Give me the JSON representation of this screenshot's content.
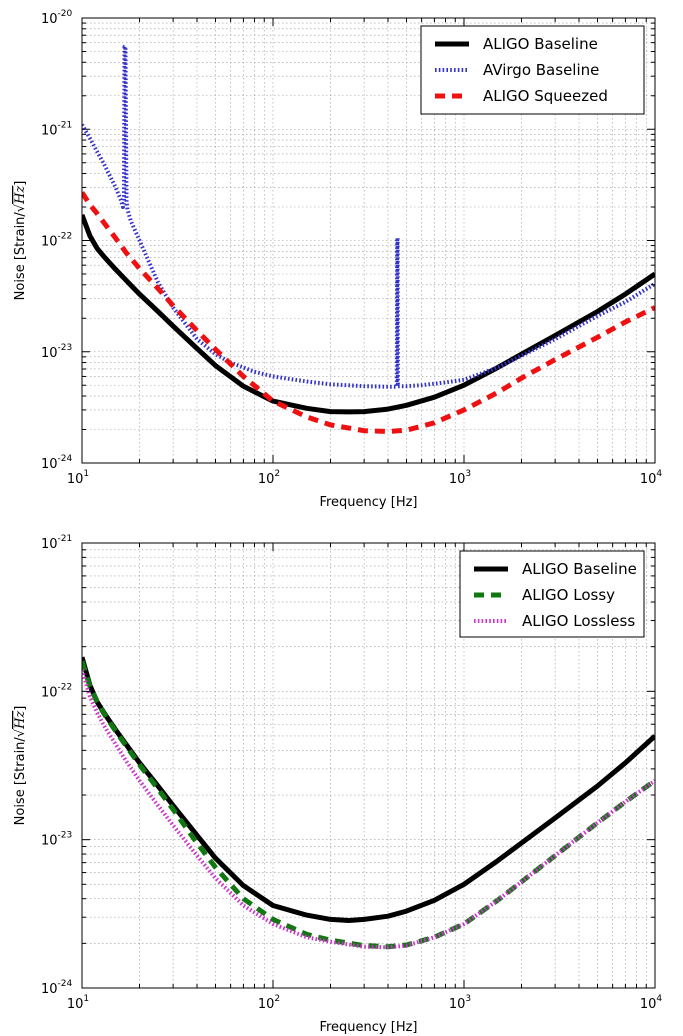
{
  "chart_data": [
    {
      "type": "line",
      "xscale": "log",
      "yscale": "log",
      "xlim": [
        10,
        10000
      ],
      "ylim": [
        1e-24,
        1e-20
      ],
      "grid": true,
      "legend_position": "top-right",
      "xlabel": "Frequency [Hz]",
      "ylabel_prefix": "Noise [Strain/",
      "ylabel_math": "Hz",
      "ylabel_suffix": "]",
      "xtick_labels": [
        "10",
        "10",
        "10",
        "10"
      ],
      "xtick_exponents": [
        "1",
        "2",
        "3",
        "4"
      ],
      "ytick_labels": [
        "10",
        "10",
        "10",
        "10",
        "10"
      ],
      "ytick_exponents": [
        "-24",
        "-23",
        "-22",
        "-21",
        "-20"
      ],
      "series": [
        {
          "name": "ALIGO Baseline",
          "color": "#000000",
          "style": "solid",
          "x": [
            10,
            11,
            12,
            13,
            15,
            17,
            20,
            25,
            30,
            40,
            50,
            70,
            100,
            150,
            200,
            250,
            300,
            400,
            500,
            700,
            1000,
            1500,
            2000,
            3000,
            5000,
            7000,
            10000
          ],
          "y": [
            1.7e-22,
            1.1e-22,
            8.5e-23,
            7.2e-23,
            5.5e-23,
            4.4e-23,
            3.3e-23,
            2.3e-23,
            1.7e-23,
            1.07e-23,
            7.5e-24,
            4.9e-24,
            3.6e-24,
            3.1e-24,
            2.9e-24,
            2.88e-24,
            2.9e-24,
            3.05e-24,
            3.3e-24,
            3.9e-24,
            5e-24,
            7.2e-24,
            9.5e-24,
            1.4e-23,
            2.3e-23,
            3.3e-23,
            5e-23
          ]
        },
        {
          "name": "AVirgo Baseline",
          "color": "#3333cc",
          "style": "dotted",
          "x": [
            10,
            11,
            12,
            13,
            14,
            15,
            16,
            16.4,
            16.6,
            16.7,
            16.9,
            17.1,
            17.3,
            18,
            20,
            25,
            30,
            40,
            50,
            60,
            80,
            100,
            150,
            200,
            300,
            400,
            445,
            447,
            449,
            451,
            455,
            500,
            600,
            800,
            1000,
            1500,
            2000,
            3000,
            5000,
            7000,
            10000
          ],
          "y": [
            1.1e-21,
            8.3e-22,
            6.3e-22,
            4.9e-22,
            3.8e-22,
            3e-22,
            2.3e-22,
            2e-22,
            2.3e-22,
            5.5e-21,
            5.5e-21,
            2.3e-22,
            1.9e-22,
            1.5e-22,
            1e-22,
            4.2e-23,
            2.5e-23,
            1.3e-23,
            9.5e-24,
            8e-24,
            6.6e-24,
            6e-24,
            5.4e-24,
            5.1e-24,
            4.9e-24,
            4.85e-24,
            4.85e-24,
            1.05e-22,
            1.05e-22,
            4.9e-24,
            4.9e-24,
            4.9e-24,
            5e-24,
            5.3e-24,
            5.6e-24,
            7.2e-24,
            9.2e-24,
            1.3e-23,
            2.1e-23,
            2.8e-23,
            4.1e-23
          ]
        },
        {
          "name": "ALIGO Squeezed",
          "color": "#ee1111",
          "style": "dashed",
          "x": [
            10,
            11,
            12,
            13,
            15,
            17,
            20,
            25,
            30,
            40,
            50,
            70,
            100,
            150,
            200,
            300,
            400,
            500,
            700,
            1000,
            1500,
            2000,
            3000,
            5000,
            7000,
            10000
          ],
          "y": [
            2.7e-22,
            2.1e-22,
            1.75e-22,
            1.45e-22,
            1.05e-22,
            7.8e-23,
            5.6e-23,
            3.7e-23,
            2.6e-23,
            1.55e-23,
            1.05e-23,
            6e-24,
            3.6e-24,
            2.6e-24,
            2.2e-24,
            1.95e-24,
            1.92e-24,
            1.97e-24,
            2.3e-24,
            3e-24,
            4.3e-24,
            5.8e-24,
            8.5e-24,
            1.35e-23,
            1.85e-23,
            2.5e-23
          ]
        }
      ]
    },
    {
      "type": "line",
      "xscale": "log",
      "yscale": "log",
      "xlim": [
        10,
        10000
      ],
      "ylim": [
        1e-24,
        1e-21
      ],
      "grid": true,
      "legend_position": "top-right",
      "xlabel": "Frequency [Hz]",
      "ylabel_prefix": "Noise [Strain/",
      "ylabel_math": "Hz",
      "ylabel_suffix": "]",
      "xtick_labels": [
        "10",
        "10",
        "10",
        "10"
      ],
      "xtick_exponents": [
        "1",
        "2",
        "3",
        "4"
      ],
      "ytick_labels": [
        "10",
        "10",
        "10",
        "10"
      ],
      "ytick_exponents": [
        "-24",
        "-23",
        "-22",
        "-21"
      ],
      "series": [
        {
          "name": "ALIGO Baseline",
          "color": "#000000",
          "style": "solid",
          "x": [
            10,
            11,
            12,
            13,
            15,
            17,
            20,
            25,
            30,
            40,
            50,
            70,
            100,
            150,
            200,
            250,
            300,
            400,
            500,
            700,
            1000,
            1500,
            2000,
            3000,
            5000,
            7000,
            10000
          ],
          "y": [
            1.7e-22,
            1.1e-22,
            8.5e-23,
            7.2e-23,
            5.5e-23,
            4.4e-23,
            3.3e-23,
            2.3e-23,
            1.7e-23,
            1.07e-23,
            7.5e-24,
            4.9e-24,
            3.6e-24,
            3.1e-24,
            2.9e-24,
            2.85e-24,
            2.9e-24,
            3.05e-24,
            3.3e-24,
            3.9e-24,
            5e-24,
            7.2e-24,
            9.5e-24,
            1.4e-23,
            2.3e-23,
            3.3e-23,
            5e-23
          ]
        },
        {
          "name": "ALIGO Lossy",
          "color": "#117711",
          "style": "dashed",
          "x": [
            10,
            11,
            12,
            13,
            15,
            17,
            20,
            25,
            30,
            40,
            50,
            70,
            100,
            150,
            200,
            300,
            400,
            500,
            700,
            1000,
            1500,
            2000,
            3000,
            5000,
            7000,
            10000
          ],
          "y": [
            1.6e-22,
            1.08e-22,
            8.5e-23,
            7.1e-23,
            5.4e-23,
            4.3e-23,
            3.2e-23,
            2.2e-23,
            1.6e-23,
            9.5e-24,
            6.5e-24,
            4e-24,
            2.9e-24,
            2.3e-24,
            2.1e-24,
            1.93e-24,
            1.9e-24,
            1.95e-24,
            2.2e-24,
            2.7e-24,
            3.9e-24,
            5.2e-24,
            7.8e-24,
            1.3e-23,
            1.8e-23,
            2.5e-23
          ]
        },
        {
          "name": "ALIGO Lossless",
          "color": "#cc33cc",
          "style": "dotted",
          "x": [
            10,
            11,
            12,
            13,
            15,
            17,
            20,
            25,
            30,
            40,
            50,
            70,
            100,
            150,
            200,
            300,
            400,
            500,
            700,
            1000,
            1500,
            2000,
            3000,
            5000,
            7000,
            10000
          ],
          "y": [
            1.4e-22,
            9.2e-23,
            7.2e-23,
            5.9e-23,
            4.4e-23,
            3.4e-23,
            2.5e-23,
            1.7e-23,
            1.25e-23,
            7.8e-24,
            5.5e-24,
            3.6e-24,
            2.7e-24,
            2.2e-24,
            2.05e-24,
            1.9e-24,
            1.88e-24,
            1.93e-24,
            2.2e-24,
            2.7e-24,
            3.9e-24,
            5.2e-24,
            7.8e-24,
            1.3e-23,
            1.8e-23,
            2.5e-23
          ]
        }
      ]
    }
  ]
}
